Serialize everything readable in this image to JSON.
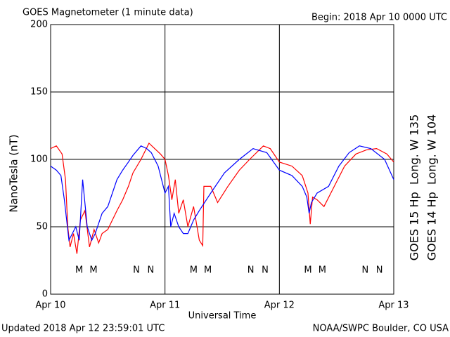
{
  "chart_data": {
    "type": "line",
    "title": "GOES Magnetometer (1 minute data)",
    "subtitle": "Begin:  2018 Apr 10 0000 UTC",
    "x_label": "Universal Time",
    "y_label": "NanoTesla (nT)",
    "footer_left": "Updated 2018 Apr 12 23:59:01 UTC",
    "footer_right": "NOAA/SWPC Boulder, CO USA",
    "xlim": [
      0,
      3
    ],
    "xticks": [
      {
        "value": 0,
        "label": "Apr 10"
      },
      {
        "value": 1,
        "label": "Apr 11"
      },
      {
        "value": 2,
        "label": "Apr 12"
      },
      {
        "value": 3,
        "label": "Apr 13"
      }
    ],
    "ylim": [
      0,
      200
    ],
    "yticks": [
      0,
      50,
      100,
      150,
      200
    ],
    "grid": true,
    "series": [
      {
        "name": "GOES 15 Hp  Long. W 135",
        "color": "#ff0000",
        "x": [
          0,
          0.05,
          0.1,
          0.13,
          0.15,
          0.17,
          0.2,
          0.23,
          0.26,
          0.3,
          0.34,
          0.38,
          0.42,
          0.45,
          0.5,
          0.54,
          0.58,
          0.63,
          0.68,
          0.72,
          0.79,
          0.86,
          0.91,
          0.96,
          1.0,
          1.03,
          1.06,
          1.09,
          1.12,
          1.16,
          1.2,
          1.25,
          1.3,
          1.33,
          1.34,
          1.4,
          1.46,
          1.55,
          1.65,
          1.74,
          1.86,
          1.92,
          2.0,
          2.11,
          2.2,
          2.25,
          2.27,
          2.29,
          2.33,
          2.39,
          2.48,
          2.57,
          2.67,
          2.76,
          2.85,
          2.94,
          3.0
        ],
        "values": [
          108,
          110,
          104,
          85,
          50,
          35,
          45,
          30,
          55,
          62,
          35,
          48,
          38,
          45,
          48,
          55,
          62,
          70,
          80,
          90,
          100,
          112,
          108,
          104,
          100,
          88,
          70,
          85,
          60,
          70,
          50,
          65,
          40,
          36,
          80,
          80,
          68,
          80,
          92,
          100,
          110,
          108,
          98,
          95,
          88,
          75,
          52,
          72,
          70,
          65,
          80,
          95,
          104,
          107,
          108,
          104,
          98
        ]
      },
      {
        "name": "GOES 14 Hp  Long. W 104",
        "color": "#0000ff",
        "x": [
          0,
          0.05,
          0.09,
          0.12,
          0.14,
          0.16,
          0.19,
          0.22,
          0.25,
          0.28,
          0.32,
          0.36,
          0.39,
          0.45,
          0.5,
          0.54,
          0.58,
          0.63,
          0.68,
          0.72,
          0.79,
          0.84,
          0.88,
          0.94,
          1.0,
          1.03,
          1.05,
          1.08,
          1.12,
          1.16,
          1.2,
          1.25,
          1.3,
          1.4,
          1.52,
          1.65,
          1.77,
          1.89,
          2.0,
          2.11,
          2.2,
          2.24,
          2.26,
          2.28,
          2.33,
          2.43,
          2.52,
          2.61,
          2.7,
          2.8,
          2.92,
          3.0
        ],
        "values": [
          95,
          92,
          88,
          70,
          55,
          40,
          45,
          50,
          40,
          85,
          50,
          40,
          45,
          60,
          65,
          75,
          85,
          92,
          98,
          103,
          110,
          108,
          105,
          95,
          75,
          80,
          50,
          60,
          50,
          45,
          45,
          55,
          62,
          75,
          90,
          100,
          108,
          105,
          92,
          88,
          80,
          72,
          60,
          68,
          75,
          80,
          95,
          105,
          110,
          108,
          100,
          85
        ]
      }
    ],
    "markers": [
      {
        "text": "M",
        "x": 0.25,
        "color": "#0000ff"
      },
      {
        "text": "M",
        "x": 0.375,
        "color": "#ff0000"
      },
      {
        "text": "N",
        "x": 0.75,
        "color": "#0000ff"
      },
      {
        "text": "N",
        "x": 0.875,
        "color": "#ff0000"
      },
      {
        "text": "M",
        "x": 1.25,
        "color": "#0000ff"
      },
      {
        "text": "M",
        "x": 1.375,
        "color": "#ff0000"
      },
      {
        "text": "N",
        "x": 1.75,
        "color": "#0000ff"
      },
      {
        "text": "N",
        "x": 1.875,
        "color": "#ff0000"
      },
      {
        "text": "M",
        "x": 2.25,
        "color": "#0000ff"
      },
      {
        "text": "M",
        "x": 2.375,
        "color": "#ff0000"
      },
      {
        "text": "N",
        "x": 2.75,
        "color": "#0000ff"
      },
      {
        "text": "N",
        "x": 2.875,
        "color": "#ff0000"
      }
    ]
  }
}
